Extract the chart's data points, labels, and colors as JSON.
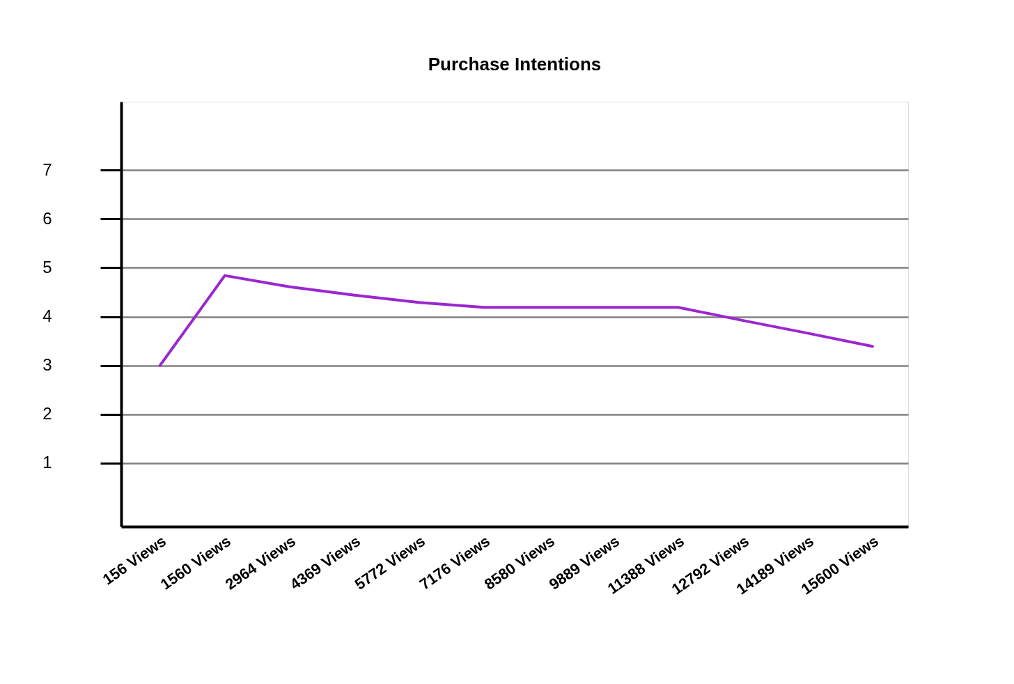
{
  "chart_data": {
    "type": "line",
    "title": "Purchase Intentions",
    "categories": [
      "156 Views",
      "1560 Views",
      "2964 Views",
      "4369 Views",
      "5772 Views",
      "7176 Views",
      "8580 Views",
      "9889 Views",
      "11388 Views",
      "12792 Views",
      "14189 Views",
      "15600 Views"
    ],
    "series": [
      {
        "color": "#9b27cf",
        "values": [
          3.0,
          4.84,
          4.61,
          4.44,
          4.29,
          4.19,
          4.19,
          4.19,
          4.19,
          3.92,
          3.66,
          3.39
        ]
      }
    ],
    "ylim": [
      -0.3,
      8.4
    ],
    "yticks": [
      1,
      2,
      3,
      4,
      5,
      6,
      7
    ],
    "grid": "y",
    "legend": false,
    "marker": "none",
    "line_style": "solid"
  }
}
